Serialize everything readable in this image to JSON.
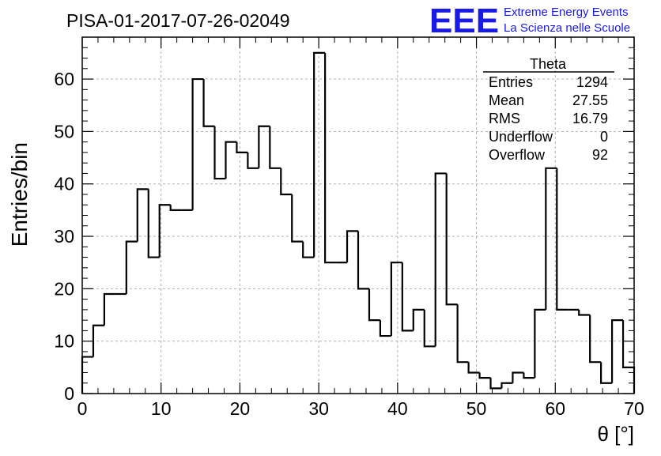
{
  "title": "PISA-01-2017-07-26-02049",
  "logo": {
    "mark": "EEE",
    "line1": "Extreme Energy Events",
    "line2": "La Scienza nelle Scuole",
    "color": "#1a1ae6"
  },
  "stats": {
    "name": "Theta",
    "rows": [
      {
        "label": "Entries",
        "value": "1294"
      },
      {
        "label": "Mean",
        "value": "27.55"
      },
      {
        "label": "RMS",
        "value": "16.79"
      },
      {
        "label": "Underflow",
        "value": "0"
      },
      {
        "label": "Overflow",
        "value": "92"
      }
    ]
  },
  "chart_data": {
    "type": "histogram",
    "title": "PISA-01-2017-07-26-02049",
    "xlabel": "θ [°]",
    "ylabel": "Entries/bin",
    "xlim": [
      0,
      70
    ],
    "ylim": [
      0,
      68
    ],
    "bin_width": 1.4,
    "x_ticks": [
      "0",
      "10",
      "20",
      "30",
      "40",
      "50",
      "60",
      "70"
    ],
    "y_ticks": [
      "0",
      "10",
      "20",
      "30",
      "40",
      "50",
      "60"
    ],
    "grid": true,
    "values": [
      7,
      13,
      19,
      19,
      29,
      39,
      26,
      36,
      35,
      35,
      60,
      51,
      41,
      48,
      46,
      43,
      51,
      43,
      38,
      29,
      26,
      65,
      25,
      25,
      31,
      20,
      14,
      11,
      25,
      12,
      16,
      9,
      42,
      17,
      6,
      4,
      3,
      1,
      2,
      4,
      3,
      16,
      43,
      16,
      16,
      15,
      6,
      2,
      14,
      5
    ]
  }
}
